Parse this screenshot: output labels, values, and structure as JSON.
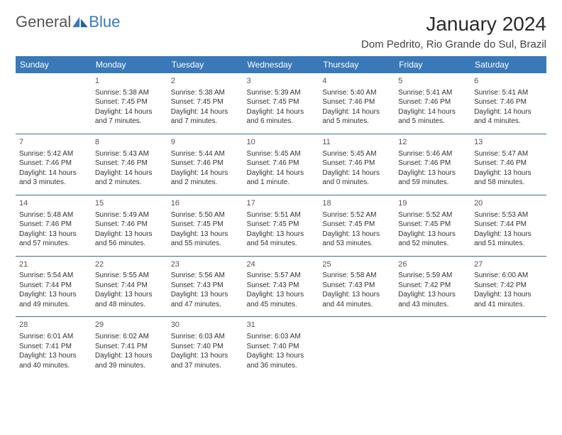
{
  "logo": {
    "text1": "General",
    "text2": "Blue"
  },
  "title": "January 2024",
  "location": "Dom Pedrito, Rio Grande do Sul, Brazil",
  "colors": {
    "header_bg": "#3a79b7",
    "header_fg": "#ffffff",
    "row_border": "#4a6a8a",
    "text": "#333333",
    "logo_gray": "#555555",
    "logo_blue": "#3a79b7"
  },
  "dayHeaders": [
    "Sunday",
    "Monday",
    "Tuesday",
    "Wednesday",
    "Thursday",
    "Friday",
    "Saturday"
  ],
  "layout": {
    "first_weekday_index": 1,
    "days_in_month": 31
  },
  "days": {
    "1": {
      "sunrise": "5:38 AM",
      "sunset": "7:45 PM",
      "daylight": "14 hours and 7 minutes."
    },
    "2": {
      "sunrise": "5:38 AM",
      "sunset": "7:45 PM",
      "daylight": "14 hours and 7 minutes."
    },
    "3": {
      "sunrise": "5:39 AM",
      "sunset": "7:45 PM",
      "daylight": "14 hours and 6 minutes."
    },
    "4": {
      "sunrise": "5:40 AM",
      "sunset": "7:46 PM",
      "daylight": "14 hours and 5 minutes."
    },
    "5": {
      "sunrise": "5:41 AM",
      "sunset": "7:46 PM",
      "daylight": "14 hours and 5 minutes."
    },
    "6": {
      "sunrise": "5:41 AM",
      "sunset": "7:46 PM",
      "daylight": "14 hours and 4 minutes."
    },
    "7": {
      "sunrise": "5:42 AM",
      "sunset": "7:46 PM",
      "daylight": "14 hours and 3 minutes."
    },
    "8": {
      "sunrise": "5:43 AM",
      "sunset": "7:46 PM",
      "daylight": "14 hours and 2 minutes."
    },
    "9": {
      "sunrise": "5:44 AM",
      "sunset": "7:46 PM",
      "daylight": "14 hours and 2 minutes."
    },
    "10": {
      "sunrise": "5:45 AM",
      "sunset": "7:46 PM",
      "daylight": "14 hours and 1 minute."
    },
    "11": {
      "sunrise": "5:45 AM",
      "sunset": "7:46 PM",
      "daylight": "14 hours and 0 minutes."
    },
    "12": {
      "sunrise": "5:46 AM",
      "sunset": "7:46 PM",
      "daylight": "13 hours and 59 minutes."
    },
    "13": {
      "sunrise": "5:47 AM",
      "sunset": "7:46 PM",
      "daylight": "13 hours and 58 minutes."
    },
    "14": {
      "sunrise": "5:48 AM",
      "sunset": "7:46 PM",
      "daylight": "13 hours and 57 minutes."
    },
    "15": {
      "sunrise": "5:49 AM",
      "sunset": "7:46 PM",
      "daylight": "13 hours and 56 minutes."
    },
    "16": {
      "sunrise": "5:50 AM",
      "sunset": "7:45 PM",
      "daylight": "13 hours and 55 minutes."
    },
    "17": {
      "sunrise": "5:51 AM",
      "sunset": "7:45 PM",
      "daylight": "13 hours and 54 minutes."
    },
    "18": {
      "sunrise": "5:52 AM",
      "sunset": "7:45 PM",
      "daylight": "13 hours and 53 minutes."
    },
    "19": {
      "sunrise": "5:52 AM",
      "sunset": "7:45 PM",
      "daylight": "13 hours and 52 minutes."
    },
    "20": {
      "sunrise": "5:53 AM",
      "sunset": "7:44 PM",
      "daylight": "13 hours and 51 minutes."
    },
    "21": {
      "sunrise": "5:54 AM",
      "sunset": "7:44 PM",
      "daylight": "13 hours and 49 minutes."
    },
    "22": {
      "sunrise": "5:55 AM",
      "sunset": "7:44 PM",
      "daylight": "13 hours and 48 minutes."
    },
    "23": {
      "sunrise": "5:56 AM",
      "sunset": "7:43 PM",
      "daylight": "13 hours and 47 minutes."
    },
    "24": {
      "sunrise": "5:57 AM",
      "sunset": "7:43 PM",
      "daylight": "13 hours and 45 minutes."
    },
    "25": {
      "sunrise": "5:58 AM",
      "sunset": "7:43 PM",
      "daylight": "13 hours and 44 minutes."
    },
    "26": {
      "sunrise": "5:59 AM",
      "sunset": "7:42 PM",
      "daylight": "13 hours and 43 minutes."
    },
    "27": {
      "sunrise": "6:00 AM",
      "sunset": "7:42 PM",
      "daylight": "13 hours and 41 minutes."
    },
    "28": {
      "sunrise": "6:01 AM",
      "sunset": "7:41 PM",
      "daylight": "13 hours and 40 minutes."
    },
    "29": {
      "sunrise": "6:02 AM",
      "sunset": "7:41 PM",
      "daylight": "13 hours and 39 minutes."
    },
    "30": {
      "sunrise": "6:03 AM",
      "sunset": "7:40 PM",
      "daylight": "13 hours and 37 minutes."
    },
    "31": {
      "sunrise": "6:03 AM",
      "sunset": "7:40 PM",
      "daylight": "13 hours and 36 minutes."
    }
  },
  "labels": {
    "sunrise_prefix": "Sunrise: ",
    "sunset_prefix": "Sunset: ",
    "daylight_prefix": "Daylight: "
  }
}
